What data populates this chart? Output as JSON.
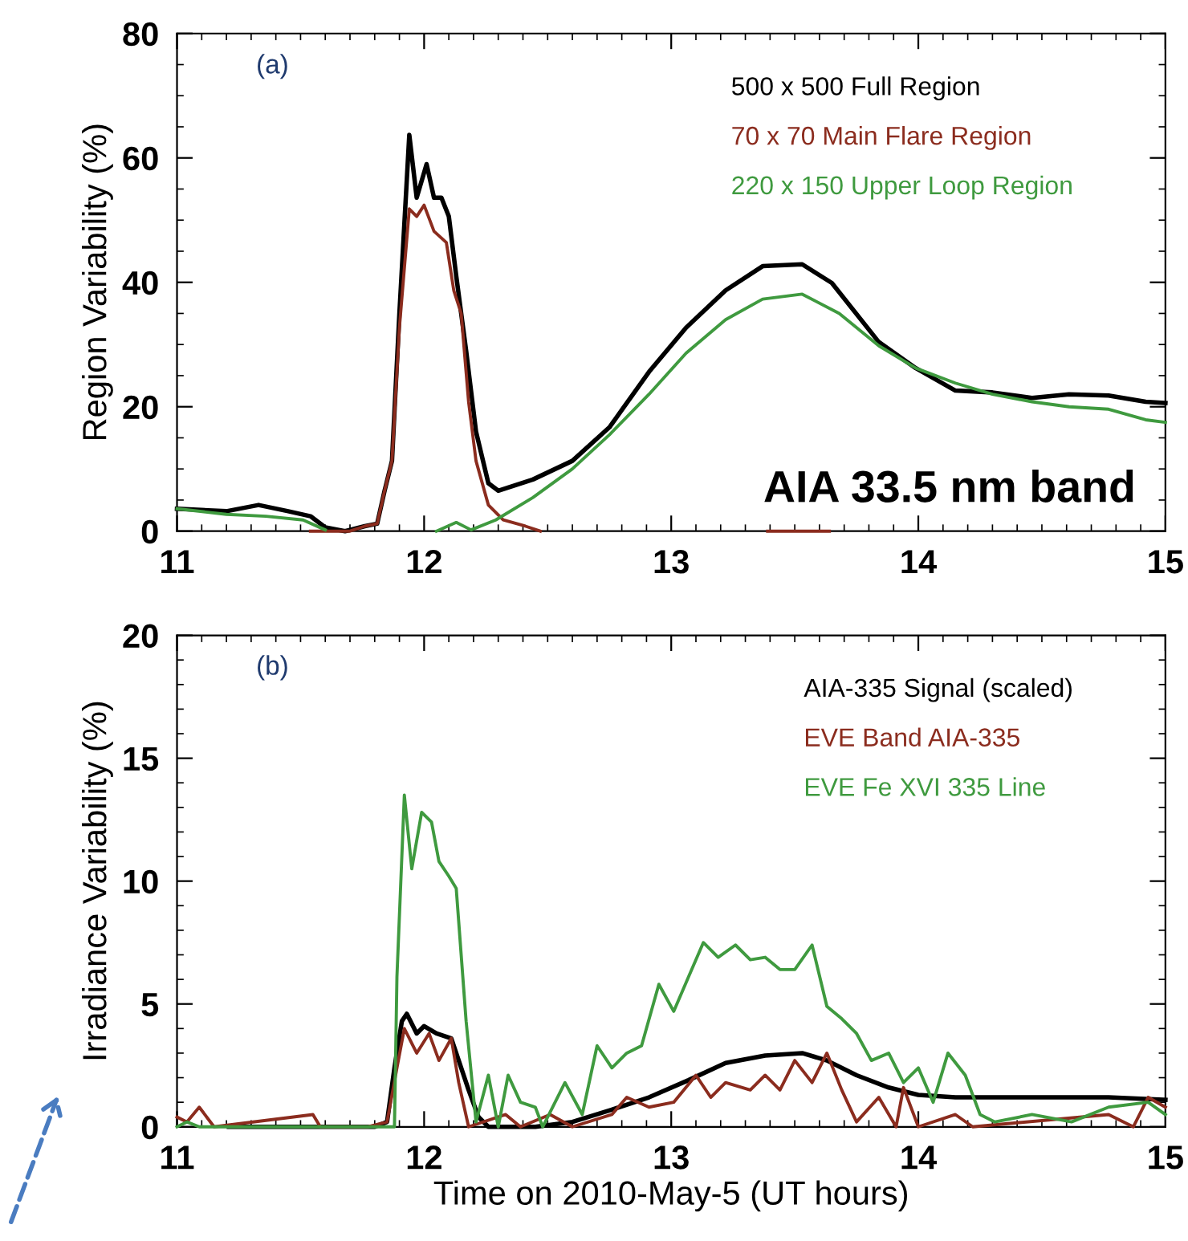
{
  "chart_data": [
    {
      "type": "line",
      "ylabel": "Region Variability (%)",
      "xlim": [
        11,
        15
      ],
      "xticks": [
        11,
        12,
        13,
        14,
        15
      ],
      "ylim": [
        0,
        80
      ],
      "yticks": [
        0,
        20,
        40,
        60,
        80
      ],
      "grid": false,
      "legend": "top right",
      "annotations": [
        "(a)",
        "AIA 33.5 nm band"
      ],
      "series": [
        {
          "name": "500 x 500 Full Region",
          "color": "#000000",
          "x": [
            11.0,
            11.2,
            11.33,
            11.45,
            11.54,
            11.6,
            11.68,
            11.76,
            11.81,
            11.84,
            11.87,
            11.9,
            11.94,
            11.97,
            12.01,
            12.04,
            12.07,
            12.1,
            12.13,
            12.17,
            12.21,
            12.26,
            12.3,
            12.44,
            12.6,
            12.75,
            12.91,
            13.06,
            13.22,
            13.37,
            13.53,
            13.65,
            13.84,
            13.99,
            14.15,
            14.3,
            14.46,
            14.61,
            14.77,
            14.92,
            15.0
          ],
          "values": [
            3.6,
            3.2,
            4.2,
            3.2,
            2.4,
            0.6,
            0,
            0.8,
            1.2,
            6.5,
            11.3,
            35,
            63.7,
            53.6,
            59,
            53.6,
            53.6,
            50.6,
            41,
            29,
            16,
            7.7,
            6.5,
            8.3,
            11.3,
            16.7,
            25.6,
            32.7,
            38.7,
            42.6,
            42.9,
            39.9,
            30.4,
            26.2,
            22.6,
            22.3,
            21.4,
            22,
            21.8,
            20.8,
            20.6
          ]
        },
        {
          "name": "70 x 70 Main Flare Region",
          "color": "#8b2c1e",
          "x": [
            11.54,
            11.6,
            11.7,
            11.76,
            11.81,
            11.84,
            11.87,
            11.9,
            11.94,
            11.97,
            12.0,
            12.04,
            12.09,
            12.12,
            12.15,
            12.18,
            12.21,
            12.26,
            12.32,
            12.41,
            12.47,
            12.9,
            13.39,
            13.64
          ],
          "values": [
            0,
            0,
            0,
            0.8,
            1.2,
            6.5,
            11.3,
            32.7,
            51.8,
            50.6,
            52.4,
            48.2,
            46.4,
            38.7,
            35,
            20.8,
            11.3,
            4.2,
            1.8,
            0.8,
            0,
            null,
            0,
            0
          ]
        },
        {
          "name": "220 x 150 Upper Loop Region",
          "color": "#3f9a3f",
          "x": [
            11.0,
            11.2,
            11.36,
            11.51,
            11.6,
            11.8,
            12.05,
            12.13,
            12.19,
            12.29,
            12.44,
            12.6,
            12.75,
            12.91,
            13.06,
            13.22,
            13.37,
            13.53,
            13.68,
            13.84,
            13.99,
            14.15,
            14.3,
            14.46,
            14.61,
            14.77,
            14.92,
            15.0
          ],
          "values": [
            3.6,
            2.7,
            2.4,
            1.8,
            0.2,
            null,
            0,
            1.4,
            0.2,
            1.8,
            5.4,
            10,
            15.5,
            22,
            28.6,
            34,
            37.3,
            38.1,
            35,
            29.8,
            26.2,
            23.8,
            22,
            20.8,
            20,
            19.6,
            17.9,
            17.5
          ]
        }
      ]
    },
    {
      "type": "line",
      "xlabel": "Time on 2010-May-5 (UT hours)",
      "ylabel": "Irradiance Variability (%)",
      "xlim": [
        11,
        15
      ],
      "xticks": [
        11,
        12,
        13,
        14,
        15
      ],
      "ylim": [
        0,
        20
      ],
      "yticks": [
        0,
        5,
        10,
        15,
        20
      ],
      "grid": false,
      "legend": "top right",
      "annotations": [
        "(b)"
      ],
      "series": [
        {
          "name": "AIA-335 Signal (scaled)",
          "color": "#000000",
          "x": [
            11.21,
            11.4,
            11.8,
            11.85,
            11.88,
            11.91,
            11.93,
            11.97,
            12.0,
            12.05,
            12.11,
            12.14,
            12.18,
            12.22,
            12.26,
            12.45,
            12.6,
            12.76,
            12.91,
            13.07,
            13.22,
            13.38,
            13.53,
            13.63,
            13.75,
            13.88,
            14.0,
            14.15,
            14.46,
            14.77,
            15.0
          ],
          "values": [
            0,
            0,
            0,
            0.2,
            2.4,
            4.3,
            4.6,
            3.8,
            4.1,
            3.8,
            3.6,
            2.7,
            1.5,
            0.4,
            0,
            0,
            0.2,
            0.7,
            1.2,
            1.9,
            2.6,
            2.9,
            3,
            2.7,
            2.1,
            1.6,
            1.3,
            1.2,
            1.2,
            1.2,
            1.1
          ]
        },
        {
          "name": "EVE Band AIA-335",
          "color": "#8b2c1e",
          "x": [
            11.0,
            11.04,
            11.09,
            11.15,
            11.55,
            11.58,
            11.77,
            11.85,
            11.89,
            11.92,
            11.97,
            12.02,
            12.06,
            12.11,
            12.14,
            12.18,
            12.33,
            12.39,
            12.51,
            12.6,
            12.76,
            12.82,
            12.91,
            13.01,
            13.1,
            13.16,
            13.22,
            13.32,
            13.38,
            13.44,
            13.5,
            13.57,
            13.63,
            13.69,
            13.75,
            13.84,
            13.91,
            13.94,
            14.0,
            14.15,
            14.22,
            14.77,
            14.87,
            14.93,
            15.0
          ],
          "values": [
            0.4,
            0.2,
            0.8,
            0,
            0.5,
            0,
            0,
            0.2,
            2.4,
            4,
            3,
            3.8,
            2.7,
            3.6,
            1.8,
            0,
            0.5,
            0,
            0.5,
            0,
            0.5,
            1.2,
            0.8,
            1,
            2.1,
            1.2,
            1.8,
            1.5,
            2.1,
            1.5,
            2.7,
            1.8,
            3,
            1.5,
            0.2,
            1.2,
            0,
            1.6,
            0,
            0.5,
            0,
            0.5,
            0,
            1.2,
            0.8
          ]
        },
        {
          "name": "EVE Fe XVI 335 Line",
          "color": "#3f9a3f",
          "x": [
            11.0,
            11.04,
            11.09,
            11.83,
            11.88,
            11.89,
            11.92,
            11.95,
            11.99,
            12.03,
            12.06,
            12.1,
            12.13,
            12.17,
            12.21,
            12.26,
            12.3,
            12.34,
            12.39,
            12.45,
            12.48,
            12.57,
            12.64,
            12.7,
            12.76,
            12.82,
            12.88,
            12.95,
            13.01,
            13.07,
            13.13,
            13.19,
            13.26,
            13.32,
            13.38,
            13.44,
            13.5,
            13.57,
            13.63,
            13.69,
            13.75,
            13.81,
            13.88,
            13.94,
            14.0,
            14.06,
            14.12,
            14.19,
            14.25,
            14.31,
            14.46,
            14.62,
            14.77,
            14.93,
            15.0
          ],
          "values": [
            0,
            0.2,
            0,
            0,
            0,
            6.1,
            13.5,
            10.5,
            12.8,
            12.4,
            10.8,
            10.2,
            9.7,
            4.3,
            0.2,
            2.1,
            0,
            2.1,
            1,
            0.8,
            0,
            1.8,
            0.5,
            3.3,
            2.4,
            3,
            3.3,
            5.8,
            4.7,
            6.1,
            7.5,
            6.9,
            7.4,
            6.8,
            6.9,
            6.4,
            6.4,
            7.4,
            4.9,
            4.4,
            3.8,
            2.7,
            3,
            1.8,
            2.4,
            1,
            3,
            2.1,
            0.5,
            0.2,
            0.5,
            0.2,
            0.8,
            1,
            0.5
          ]
        }
      ]
    }
  ]
}
